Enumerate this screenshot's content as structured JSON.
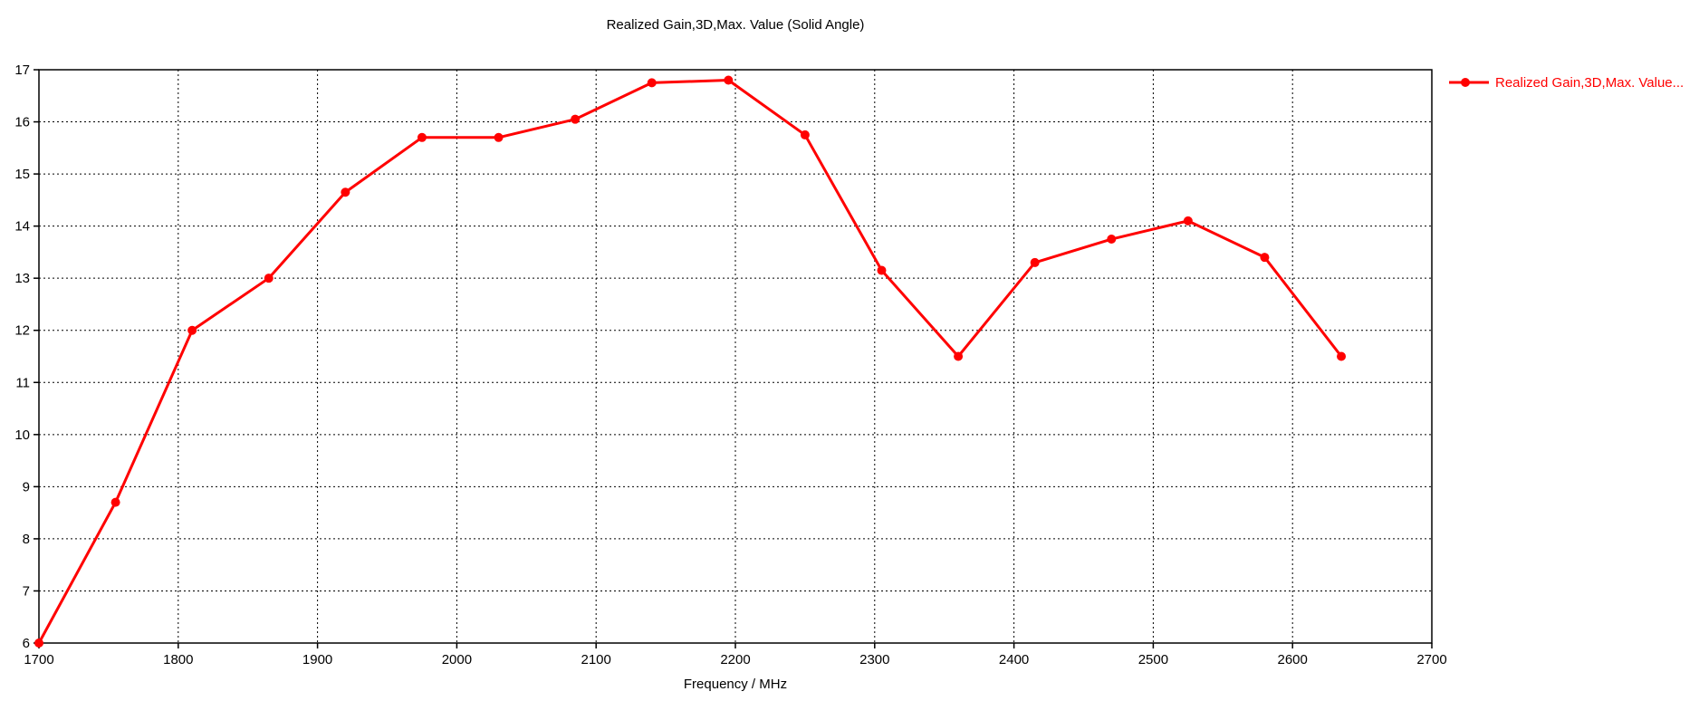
{
  "title": "Realized Gain,3D,Max. Value (Solid Angle)",
  "legend": {
    "label": "Realized Gain,3D,Max. Value..."
  },
  "colors": {
    "series": "#ff0000",
    "axis": "#000000",
    "grid": "#000000",
    "background": "#ffffff",
    "legend_text": "#ff0000"
  },
  "chart_data": {
    "type": "line",
    "title": "Realized Gain,3D,Max. Value (Solid Angle)",
    "xlabel": "Frequency / MHz",
    "ylabel": "",
    "xlim": [
      1700,
      2700
    ],
    "ylim": [
      6,
      17
    ],
    "x_ticks": [
      1700,
      1800,
      1900,
      2000,
      2100,
      2200,
      2300,
      2400,
      2500,
      2600,
      2700
    ],
    "y_ticks": [
      6,
      7,
      8,
      9,
      10,
      11,
      12,
      13,
      14,
      15,
      16,
      17
    ],
    "grid": true,
    "grid_style": "dashed",
    "legend_position": "top-right-outside",
    "series": [
      {
        "name": "Realized Gain,3D,Max. Value...",
        "color": "#ff0000",
        "marker": "circle",
        "x": [
          1700,
          1755,
          1810,
          1865,
          1920,
          1975,
          2030,
          2085,
          2140,
          2195,
          2250,
          2305,
          2360,
          2415,
          2470,
          2525,
          2580,
          2635
        ],
        "y": [
          6.0,
          8.7,
          12.0,
          13.0,
          14.65,
          15.7,
          15.7,
          16.05,
          16.75,
          16.8,
          15.75,
          13.15,
          11.5,
          13.3,
          13.75,
          14.1,
          13.4,
          11.5
        ]
      }
    ]
  }
}
